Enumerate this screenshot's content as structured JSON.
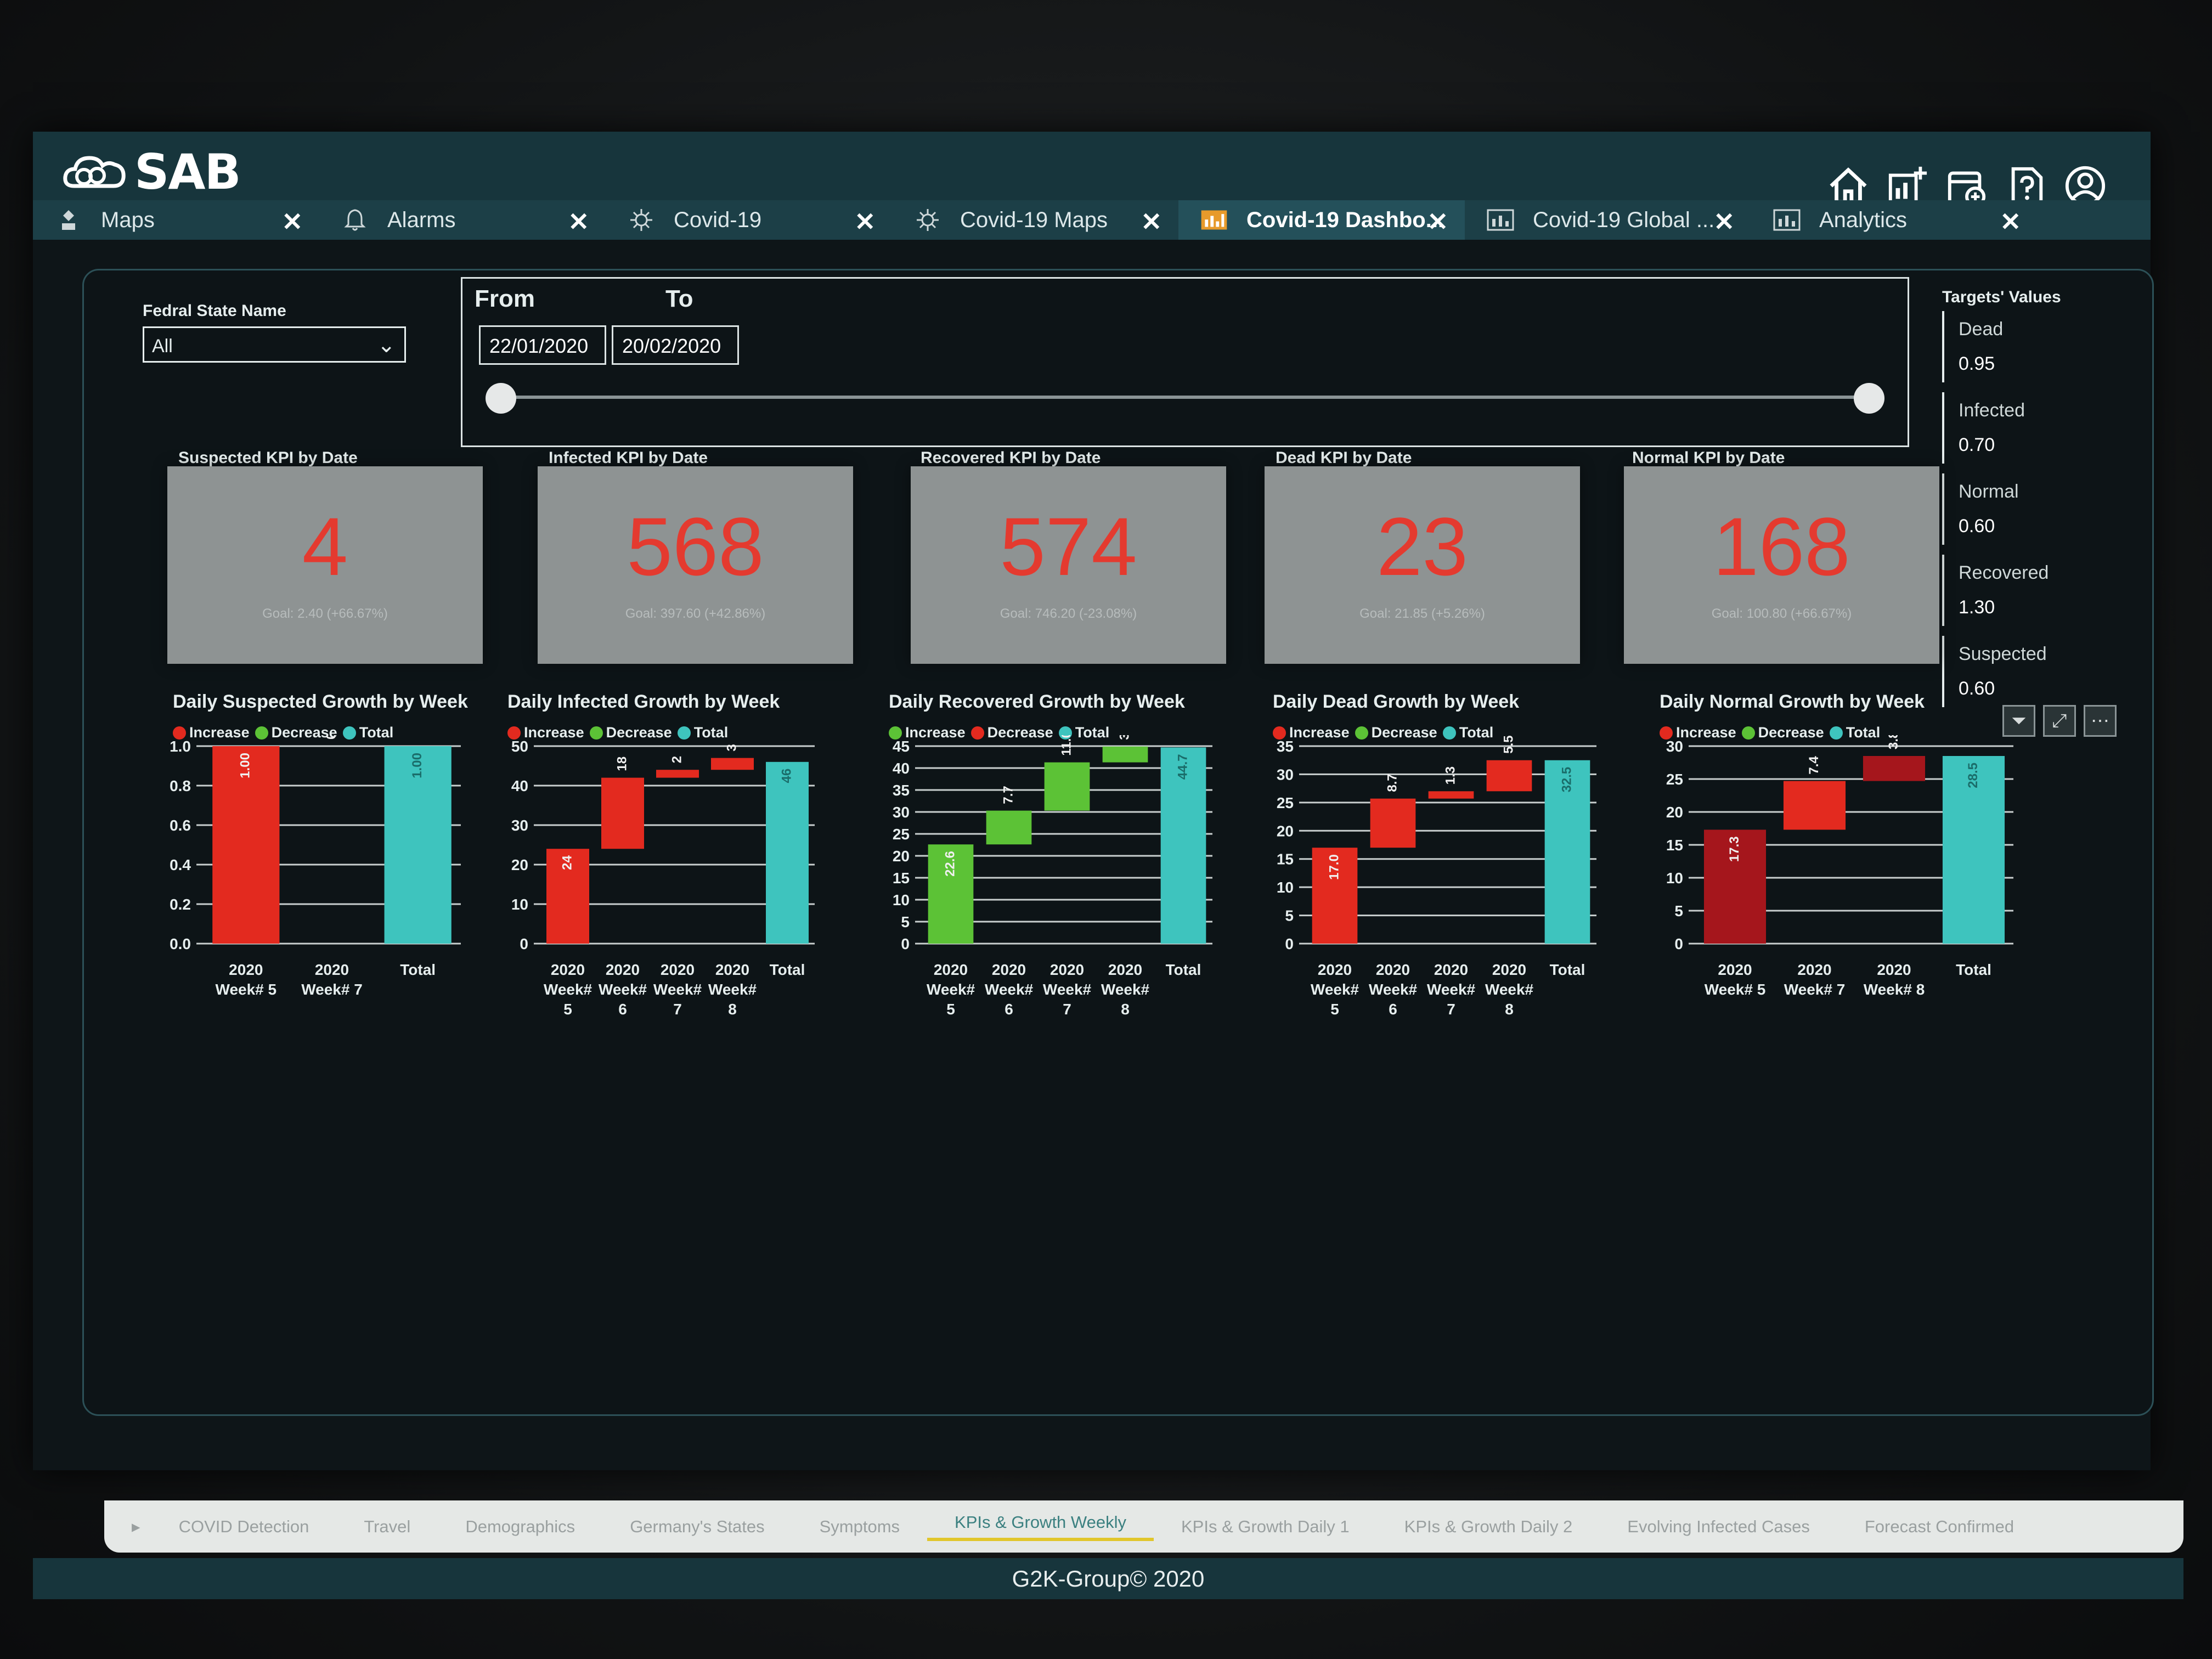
{
  "app": {
    "logo_text": "SAB"
  },
  "tabs": [
    {
      "label": "Maps",
      "icon": "app-icon",
      "active": false
    },
    {
      "label": "Alarms",
      "icon": "bell-icon",
      "active": false
    },
    {
      "label": "Covid-19",
      "icon": "virus-icon",
      "active": false
    },
    {
      "label": "Covid-19 Maps",
      "icon": "virus-icon",
      "active": false
    },
    {
      "label": "Covid-19 Dashbo...",
      "icon": "dashboard-icon",
      "active": true
    },
    {
      "label": "Covid-19 Global ...",
      "icon": "report-icon",
      "active": false
    },
    {
      "label": "Analytics",
      "icon": "report-icon",
      "active": false
    }
  ],
  "filters": {
    "state_label": "Fedral State Name",
    "state_value": "All",
    "from_label": "From",
    "to_label": "To",
    "from_date": "22/01/2020",
    "to_date": "20/02/2020",
    "range_fraction": [
      0.0,
      1.0
    ]
  },
  "targets": {
    "title": "Targets' Values",
    "items": [
      {
        "name": "Dead",
        "value": "0.95"
      },
      {
        "name": "Infected",
        "value": "0.70"
      },
      {
        "name": "Normal",
        "value": "0.60"
      },
      {
        "name": "Recovered",
        "value": "1.30"
      },
      {
        "name": "Suspected",
        "value": "0.60"
      }
    ]
  },
  "kpis": [
    {
      "title": "Suspected KPI by Date",
      "value": "4",
      "goal": "Goal: 2.40 (+66.67%)"
    },
    {
      "title": "Infected KPI by Date",
      "value": "568",
      "goal": "Goal: 397.60 (+42.86%)"
    },
    {
      "title": "Recovered KPI by Date",
      "value": "574",
      "goal": "Goal: 746.20 (-23.08%)"
    },
    {
      "title": "Dead KPI by Date",
      "value": "23",
      "goal": "Goal: 21.85 (+5.26%)"
    },
    {
      "title": "Normal KPI by Date",
      "value": "168",
      "goal": "Goal: 100.80 (+66.67%)"
    }
  ],
  "legend_labels": {
    "increase": "Increase",
    "decrease": "Decrease",
    "total": "Total"
  },
  "colors": {
    "increase_red": "#e32a1f",
    "decrease_green": "#5cc236",
    "total_teal": "#3ec4be",
    "dark_red": "#a5161c",
    "kpi_value": "#e43a2f",
    "panel_bg": "#0d1417",
    "header_bg": "#17353c",
    "page_tab_active": "#3b8080"
  },
  "chart_data": [
    {
      "type": "waterfall",
      "title": "Daily Suspected Growth by Week",
      "legend": [
        "Increase",
        "Decrease",
        "Total"
      ],
      "categories": [
        [
          "2020",
          "Week# 5"
        ],
        [
          "2020",
          "Week# 7"
        ],
        [
          "Total"
        ]
      ],
      "values": [
        1.0,
        0.0,
        1.0
      ],
      "labels": [
        "1.00",
        "0.00",
        "1.00"
      ],
      "ylim": [
        0,
        1.0
      ],
      "yticks": [
        "0.0",
        "0.2",
        "0.4",
        "0.6",
        "0.8",
        "1.0"
      ]
    },
    {
      "type": "waterfall",
      "title": "Daily Infected Growth by Week",
      "legend": [
        "Increase",
        "Decrease",
        "Total"
      ],
      "categories": [
        [
          "2020",
          "Week#",
          "5"
        ],
        [
          "2020",
          "Week#",
          "6"
        ],
        [
          "2020",
          "Week#",
          "7"
        ],
        [
          "2020",
          "Week#",
          "8"
        ],
        [
          "Total"
        ]
      ],
      "values": [
        24,
        18,
        2,
        3,
        46
      ],
      "labels": [
        "24",
        "18",
        "2",
        "3",
        "46"
      ],
      "ylim": [
        0,
        50
      ],
      "yticks": [
        "0",
        "10",
        "20",
        "30",
        "40",
        "50"
      ]
    },
    {
      "type": "waterfall",
      "title": "Daily Recovered Growth by Week",
      "legend": [
        "Increase",
        "Decrease",
        "Total"
      ],
      "categories": [
        [
          "2020",
          "Week#",
          "5"
        ],
        [
          "2020",
          "Week#",
          "6"
        ],
        [
          "2020",
          "Week#",
          "7"
        ],
        [
          "2020",
          "Week#",
          "8"
        ],
        [
          "Total"
        ]
      ],
      "values": [
        22.6,
        7.7,
        11.0,
        3.6,
        44.7
      ],
      "labels": [
        "22.6",
        "7.7",
        "11.0",
        "3.6",
        "44.7"
      ],
      "ylim": [
        0,
        45
      ],
      "yticks": [
        "0",
        "5",
        "10",
        "15",
        "20",
        "25",
        "30",
        "35",
        "40",
        "45"
      ]
    },
    {
      "type": "waterfall",
      "title": "Daily Dead Growth by Week",
      "legend": [
        "Increase",
        "Decrease",
        "Total"
      ],
      "categories": [
        [
          "2020",
          "Week#",
          "5"
        ],
        [
          "2020",
          "Week#",
          "6"
        ],
        [
          "2020",
          "Week#",
          "7"
        ],
        [
          "2020",
          "Week#",
          "8"
        ],
        [
          "Total"
        ]
      ],
      "values": [
        17.0,
        8.7,
        1.3,
        5.5,
        32.5
      ],
      "labels": [
        "17.0",
        "8.7",
        "1.3",
        "5.5",
        "32.5"
      ],
      "ylim": [
        0,
        35
      ],
      "yticks": [
        "0",
        "5",
        "10",
        "15",
        "20",
        "25",
        "30",
        "35"
      ]
    },
    {
      "type": "waterfall",
      "title": "Daily Normal Growth by Week",
      "legend": [
        "Increase",
        "Decrease",
        "Total"
      ],
      "categories": [
        [
          "2020",
          "Week# 5"
        ],
        [
          "2020",
          "Week# 7"
        ],
        [
          "2020",
          "Week# 8"
        ],
        [
          "Total"
        ]
      ],
      "values": [
        17.3,
        7.4,
        3.8,
        28.5
      ],
      "labels": [
        "17.3",
        "7.4",
        "3.8",
        "28.5"
      ],
      "ylim": [
        0,
        30
      ],
      "yticks": [
        "0",
        "5",
        "10",
        "15",
        "20",
        "25",
        "30"
      ]
    }
  ],
  "page_tabs": [
    {
      "label": "COVID Detection",
      "active": false
    },
    {
      "label": "Travel",
      "active": false
    },
    {
      "label": "Demographics",
      "active": false
    },
    {
      "label": "Germany's States",
      "active": false
    },
    {
      "label": "Symptoms",
      "active": false
    },
    {
      "label": "KPIs & Growth Weekly",
      "active": true
    },
    {
      "label": "KPIs & Growth Daily 1",
      "active": false
    },
    {
      "label": "KPIs & Growth Daily 2",
      "active": false
    },
    {
      "label": "Evolving Infected Cases",
      "active": false
    },
    {
      "label": "Forecast Confirmed",
      "active": false
    }
  ],
  "footer": {
    "text": "G2K-Group© 2020"
  }
}
